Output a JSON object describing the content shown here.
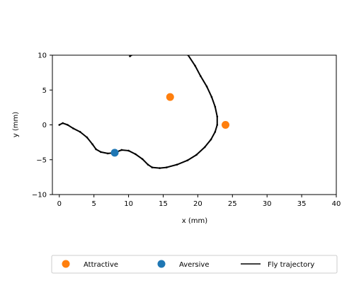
{
  "chart_data": {
    "type": "scatter",
    "xlabel": "x (mm)",
    "ylabel": "y (mm)",
    "xlim": [
      -1,
      40
    ],
    "ylim": [
      -10,
      10
    ],
    "xticks": [
      0,
      5,
      10,
      15,
      20,
      25,
      30,
      35,
      40
    ],
    "yticks": [
      -10,
      -5,
      0,
      5,
      10
    ],
    "grid": false,
    "legend_position": "bottom",
    "series": [
      {
        "name": "Attractive",
        "type": "scatter",
        "color": "#ff7f0e",
        "points": [
          [
            16.0,
            4.0
          ],
          [
            24.0,
            0.0
          ]
        ]
      },
      {
        "name": "Aversive",
        "type": "scatter",
        "color": "#1f77b4",
        "points": [
          [
            8.0,
            -4.0
          ]
        ]
      },
      {
        "name": "Fly trajectory",
        "type": "line",
        "color": "#000000",
        "segments": [
          [
            [
              10.2,
              9.85
            ],
            [
              10.4,
              10.0
            ]
          ],
          [
            [
              0.0,
              0.0
            ],
            [
              0.5,
              0.25
            ],
            [
              1.2,
              0.0
            ],
            [
              2.0,
              -0.5
            ],
            [
              3.0,
              -1.0
            ],
            [
              4.0,
              -1.8
            ],
            [
              4.8,
              -2.8
            ],
            [
              5.3,
              -3.5
            ],
            [
              6.0,
              -3.9
            ],
            [
              7.0,
              -4.1
            ],
            [
              8.0,
              -4.0
            ],
            [
              9.0,
              -3.6
            ],
            [
              10.0,
              -3.7
            ],
            [
              11.0,
              -4.2
            ],
            [
              12.0,
              -4.9
            ],
            [
              12.8,
              -5.7
            ],
            [
              13.4,
              -6.1
            ],
            [
              14.5,
              -6.2
            ],
            [
              15.5,
              -6.1
            ],
            [
              17.0,
              -5.7
            ],
            [
              18.5,
              -5.1
            ],
            [
              19.8,
              -4.3
            ],
            [
              21.0,
              -3.2
            ],
            [
              21.9,
              -2.1
            ],
            [
              22.5,
              -1.0
            ],
            [
              22.8,
              0.0
            ],
            [
              22.8,
              1.2
            ],
            [
              22.5,
              2.6
            ],
            [
              22.0,
              4.0
            ],
            [
              21.3,
              5.5
            ],
            [
              20.4,
              7.0
            ],
            [
              19.6,
              8.5
            ],
            [
              18.6,
              10.0
            ]
          ]
        ]
      }
    ],
    "legend": [
      "Attractive",
      "Aversive",
      "Fly trajectory"
    ]
  }
}
